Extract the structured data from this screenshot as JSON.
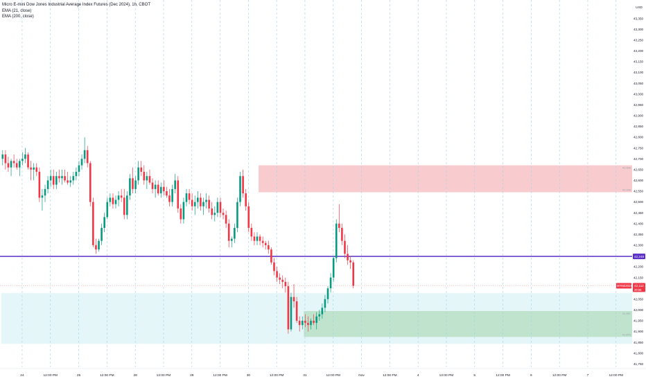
{
  "chart_data": {
    "type": "candlestick",
    "title": "Micro E-mini Dow Jones Industrial Average Index Futures (Dec 2024), 1h, CBOT",
    "indicators": [
      "EMA (21, close)",
      "EMA (200, close)"
    ],
    "currency_label": "USD",
    "y_ticks": [
      43400,
      43350,
      43300,
      43250,
      43200,
      43150,
      43100,
      43050,
      43000,
      42950,
      42900,
      42850,
      42800,
      42750,
      42700,
      42650,
      42600,
      42550,
      42500,
      42450,
      42400,
      42350,
      42300,
      42250,
      42200,
      42150,
      42100,
      42050,
      42000,
      41950,
      41900,
      41850,
      41800,
      41750
    ],
    "ylim": [
      41735,
      43410
    ],
    "x_ticks": [
      {
        "label": "24",
        "slot": 2
      },
      {
        "label": "12:00 PM",
        "slot": 12
      },
      {
        "label": "25",
        "slot": 22
      },
      {
        "label": "12:00 PM",
        "slot": 32
      },
      {
        "label": "28",
        "slot": 42
      },
      {
        "label": "12:00 PM",
        "slot": 52
      },
      {
        "label": "29",
        "slot": 62
      },
      {
        "label": "12:00 PM",
        "slot": 72
      },
      {
        "label": "30",
        "slot": 82
      },
      {
        "label": "12:00 PM",
        "slot": 92
      },
      {
        "label": "31",
        "slot": 102
      },
      {
        "label": "12:00 PM",
        "slot": 112
      },
      {
        "label": "Nov",
        "slot": 122
      },
      {
        "label": "12:00 PM",
        "slot": 132
      },
      {
        "label": "4",
        "slot": 142
      },
      {
        "label": "12:00 PM",
        "slot": 152
      },
      {
        "label": "5",
        "slot": 162
      },
      {
        "label": "12:00 PM",
        "slot": 172
      },
      {
        "label": "6",
        "slot": 182
      },
      {
        "label": "12:00 PM",
        "slot": 192
      },
      {
        "label": "7",
        "slot": 202
      },
      {
        "label": "12:00 PM",
        "slot": 212
      }
    ],
    "horizontal_line": {
      "price": 42248,
      "label": "42,248",
      "color": "#5b2dc9"
    },
    "current_price": {
      "price": 42112,
      "label": "42,112",
      "symbol": "MYMZ2024",
      "countdown": "39:56",
      "color": "#f23645"
    },
    "zones": [
      {
        "name": "supply",
        "from_slot": 91,
        "to_slot": 212,
        "top": 42670,
        "bottom": 42545,
        "fill": "#f7c3c6",
        "top_label": "42,666",
        "bottom_label": "42,548"
      },
      {
        "name": "demand-wide",
        "from_slot": 0,
        "to_slot": 212,
        "top": 42078,
        "bottom": 41843,
        "fill": "#e0f4f7",
        "top_label": "",
        "bottom_label": ""
      },
      {
        "name": "demand",
        "from_slot": 107,
        "to_slot": 212,
        "top": 41995,
        "bottom": 41875,
        "fill": "#b9dfc6",
        "top_label": "41,997",
        "bottom_label": "41,875"
      }
    ],
    "candles": [
      [
        42700,
        42740,
        42670,
        42720
      ],
      [
        42720,
        42740,
        42650,
        42680
      ],
      [
        42680,
        42710,
        42640,
        42660
      ],
      [
        42660,
        42700,
        42620,
        42690
      ],
      [
        42690,
        42720,
        42660,
        42680
      ],
      [
        42680,
        42700,
        42650,
        42660
      ],
      [
        42660,
        42700,
        42620,
        42690
      ],
      [
        42690,
        42730,
        42670,
        42700
      ],
      [
        42700,
        42750,
        42680,
        42720
      ],
      [
        42720,
        42730,
        42650,
        42660
      ],
      [
        42660,
        42690,
        42600,
        42650
      ],
      [
        42650,
        42680,
        42600,
        42660
      ],
      [
        42660,
        42680,
        42620,
        42640
      ],
      [
        42640,
        42660,
        42500,
        42520
      ],
      [
        42520,
        42560,
        42460,
        42530
      ],
      [
        42530,
        42580,
        42500,
        42560
      ],
      [
        42560,
        42620,
        42540,
        42600
      ],
      [
        42600,
        42650,
        42570,
        42620
      ],
      [
        42620,
        42650,
        42560,
        42580
      ],
      [
        42580,
        42640,
        42560,
        42620
      ],
      [
        42620,
        42650,
        42590,
        42610
      ],
      [
        42610,
        42650,
        42580,
        42620
      ],
      [
        42620,
        42650,
        42590,
        42600
      ],
      [
        42600,
        42640,
        42580,
        42590
      ],
      [
        42590,
        42620,
        42570,
        42600
      ],
      [
        42600,
        42640,
        42580,
        42620
      ],
      [
        42620,
        42660,
        42600,
        42640
      ],
      [
        42640,
        42690,
        42620,
        42670
      ],
      [
        42670,
        42720,
        42650,
        42700
      ],
      [
        42700,
        42800,
        42680,
        42740
      ],
      [
        42740,
        42760,
        42660,
        42680
      ],
      [
        42680,
        42690,
        42480,
        42500
      ],
      [
        42500,
        42520,
        42290,
        42300
      ],
      [
        42300,
        42330,
        42260,
        42280
      ],
      [
        42280,
        42330,
        42270,
        42320
      ],
      [
        42320,
        42400,
        42300,
        42380
      ],
      [
        42380,
        42450,
        42360,
        42430
      ],
      [
        42430,
        42520,
        42420,
        42500
      ],
      [
        42500,
        42540,
        42480,
        42520
      ],
      [
        42520,
        42540,
        42470,
        42490
      ],
      [
        42490,
        42530,
        42470,
        42510
      ],
      [
        42510,
        42550,
        42480,
        42530
      ],
      [
        42530,
        42560,
        42500,
        42520
      ],
      [
        42520,
        42560,
        42420,
        42440
      ],
      [
        42440,
        42550,
        42420,
        42530
      ],
      [
        42530,
        42630,
        42510,
        42610
      ],
      [
        42610,
        42660,
        42540,
        42560
      ],
      [
        42560,
        42620,
        42540,
        42600
      ],
      [
        42600,
        42690,
        42580,
        42660
      ],
      [
        42660,
        42690,
        42620,
        42640
      ],
      [
        42640,
        42670,
        42580,
        42600
      ],
      [
        42600,
        42640,
        42560,
        42620
      ],
      [
        42620,
        42650,
        42580,
        42590
      ],
      [
        42590,
        42610,
        42540,
        42560
      ],
      [
        42560,
        42600,
        42520,
        42580
      ],
      [
        42580,
        42600,
        42530,
        42540
      ],
      [
        42540,
        42590,
        42520,
        42570
      ],
      [
        42570,
        42600,
        42530,
        42550
      ],
      [
        42550,
        42570,
        42520,
        42530
      ],
      [
        42530,
        42560,
        42480,
        42500
      ],
      [
        42500,
        42580,
        42480,
        42560
      ],
      [
        42560,
        42630,
        42540,
        42600
      ],
      [
        42600,
        42620,
        42450,
        42470
      ],
      [
        42470,
        42490,
        42400,
        42420
      ],
      [
        42420,
        42520,
        42400,
        42500
      ],
      [
        42500,
        42560,
        42480,
        42540
      ],
      [
        42540,
        42560,
        42490,
        42510
      ],
      [
        42510,
        42540,
        42460,
        42480
      ],
      [
        42480,
        42530,
        42440,
        42500
      ],
      [
        42500,
        42550,
        42470,
        42520
      ],
      [
        42520,
        42540,
        42460,
        42480
      ],
      [
        42480,
        42520,
        42440,
        42500
      ],
      [
        42500,
        42540,
        42470,
        42510
      ],
      [
        42510,
        42530,
        42450,
        42470
      ],
      [
        42470,
        42500,
        42420,
        42440
      ],
      [
        42440,
        42480,
        42410,
        42450
      ],
      [
        42450,
        42520,
        42430,
        42500
      ],
      [
        42500,
        42520,
        42430,
        42450
      ],
      [
        42450,
        42470,
        42420,
        42440
      ],
      [
        42440,
        42460,
        42380,
        42400
      ],
      [
        42400,
        42420,
        42290,
        42320
      ],
      [
        42320,
        42340,
        42290,
        42330
      ],
      [
        42330,
        42400,
        42310,
        42380
      ],
      [
        42380,
        42520,
        42360,
        42500
      ],
      [
        42500,
        42640,
        42480,
        42620
      ],
      [
        42620,
        42650,
        42520,
        42540
      ],
      [
        42540,
        42560,
        42460,
        42480
      ],
      [
        42480,
        42500,
        42360,
        42380
      ],
      [
        42380,
        42400,
        42320,
        42340
      ],
      [
        42340,
        42360,
        42300,
        42320
      ],
      [
        42320,
        42360,
        42300,
        42340
      ],
      [
        42340,
        42350,
        42300,
        42320
      ],
      [
        42320,
        42340,
        42290,
        42310
      ],
      [
        42310,
        42320,
        42280,
        42300
      ],
      [
        42300,
        42320,
        42260,
        42280
      ],
      [
        42280,
        42290,
        42210,
        42220
      ],
      [
        42220,
        42240,
        42160,
        42180
      ],
      [
        42180,
        42200,
        42130,
        42150
      ],
      [
        42150,
        42170,
        42120,
        42140
      ],
      [
        42140,
        42160,
        42100,
        42130
      ],
      [
        42130,
        42150,
        42080,
        42110
      ],
      [
        42110,
        42130,
        41890,
        41910
      ],
      [
        41910,
        42080,
        41900,
        42060
      ],
      [
        42060,
        42120,
        42010,
        42040
      ],
      [
        42040,
        42060,
        41940,
        41950
      ],
      [
        41950,
        41970,
        41900,
        41930
      ],
      [
        41930,
        41970,
        41910,
        41950
      ],
      [
        41950,
        41980,
        41920,
        41940
      ],
      [
        41940,
        41970,
        41900,
        41930
      ],
      [
        41930,
        41960,
        41910,
        41950
      ],
      [
        41950,
        41980,
        41930,
        41940
      ],
      [
        41940,
        41990,
        41910,
        41970
      ],
      [
        41970,
        42000,
        41950,
        41980
      ],
      [
        41980,
        42030,
        41960,
        42010
      ],
      [
        42010,
        42070,
        41990,
        42050
      ],
      [
        42050,
        42110,
        42030,
        42100
      ],
      [
        42100,
        42170,
        42080,
        42150
      ],
      [
        42150,
        42250,
        42130,
        42240
      ],
      [
        42240,
        42420,
        42220,
        42400
      ],
      [
        42400,
        42490,
        42360,
        42380
      ],
      [
        42380,
        42400,
        42300,
        42320
      ],
      [
        42320,
        42350,
        42240,
        42260
      ],
      [
        42260,
        42300,
        42210,
        42230
      ],
      [
        42230,
        42250,
        42190,
        42220
      ],
      [
        42220,
        42230,
        42100,
        42112
      ]
    ]
  }
}
